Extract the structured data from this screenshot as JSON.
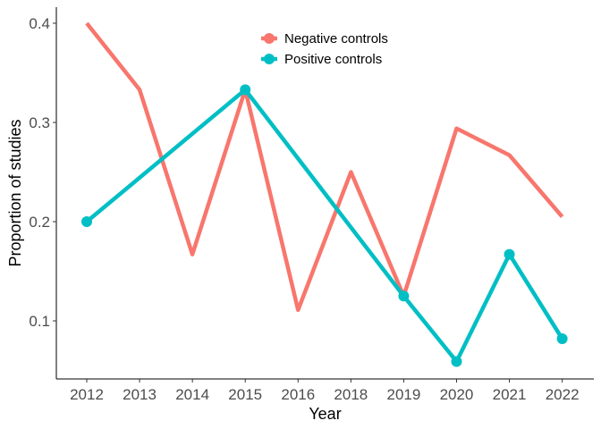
{
  "chart_data": {
    "type": "line",
    "title": "",
    "xlabel": "Year",
    "ylabel": "Proportion of studies",
    "categories": [
      "2012",
      "2013",
      "2014",
      "2015",
      "2016",
      "2018",
      "2019",
      "2020",
      "2021",
      "2022"
    ],
    "y_ticks": [
      0.1,
      0.2,
      0.3,
      0.4
    ],
    "y_tick_labels": [
      "0.1",
      "0.2",
      "0.3",
      "0.4"
    ],
    "ylim": [
      0.04,
      0.42
    ],
    "grid": false,
    "legend_position": "top-center",
    "series": [
      {
        "name": "Negative controls",
        "color": "#F8766D",
        "marker": "none",
        "points": [
          {
            "x": "2012",
            "y": 0.4
          },
          {
            "x": "2013",
            "y": 0.333
          },
          {
            "x": "2014",
            "y": 0.167
          },
          {
            "x": "2015",
            "y": 0.333
          },
          {
            "x": "2016",
            "y": 0.111
          },
          {
            "x": "2018",
            "y": 0.25
          },
          {
            "x": "2019",
            "y": 0.125
          },
          {
            "x": "2020",
            "y": 0.294
          },
          {
            "x": "2021",
            "y": 0.267
          },
          {
            "x": "2022",
            "y": 0.205
          }
        ]
      },
      {
        "name": "Positive controls",
        "color": "#00BFC4",
        "marker": "circle",
        "points": [
          {
            "x": "2012",
            "y": 0.2
          },
          {
            "x": "2015",
            "y": 0.333
          },
          {
            "x": "2019",
            "y": 0.125
          },
          {
            "x": "2020",
            "y": 0.059
          },
          {
            "x": "2021",
            "y": 0.167
          },
          {
            "x": "2022",
            "y": 0.082
          }
        ]
      }
    ]
  }
}
